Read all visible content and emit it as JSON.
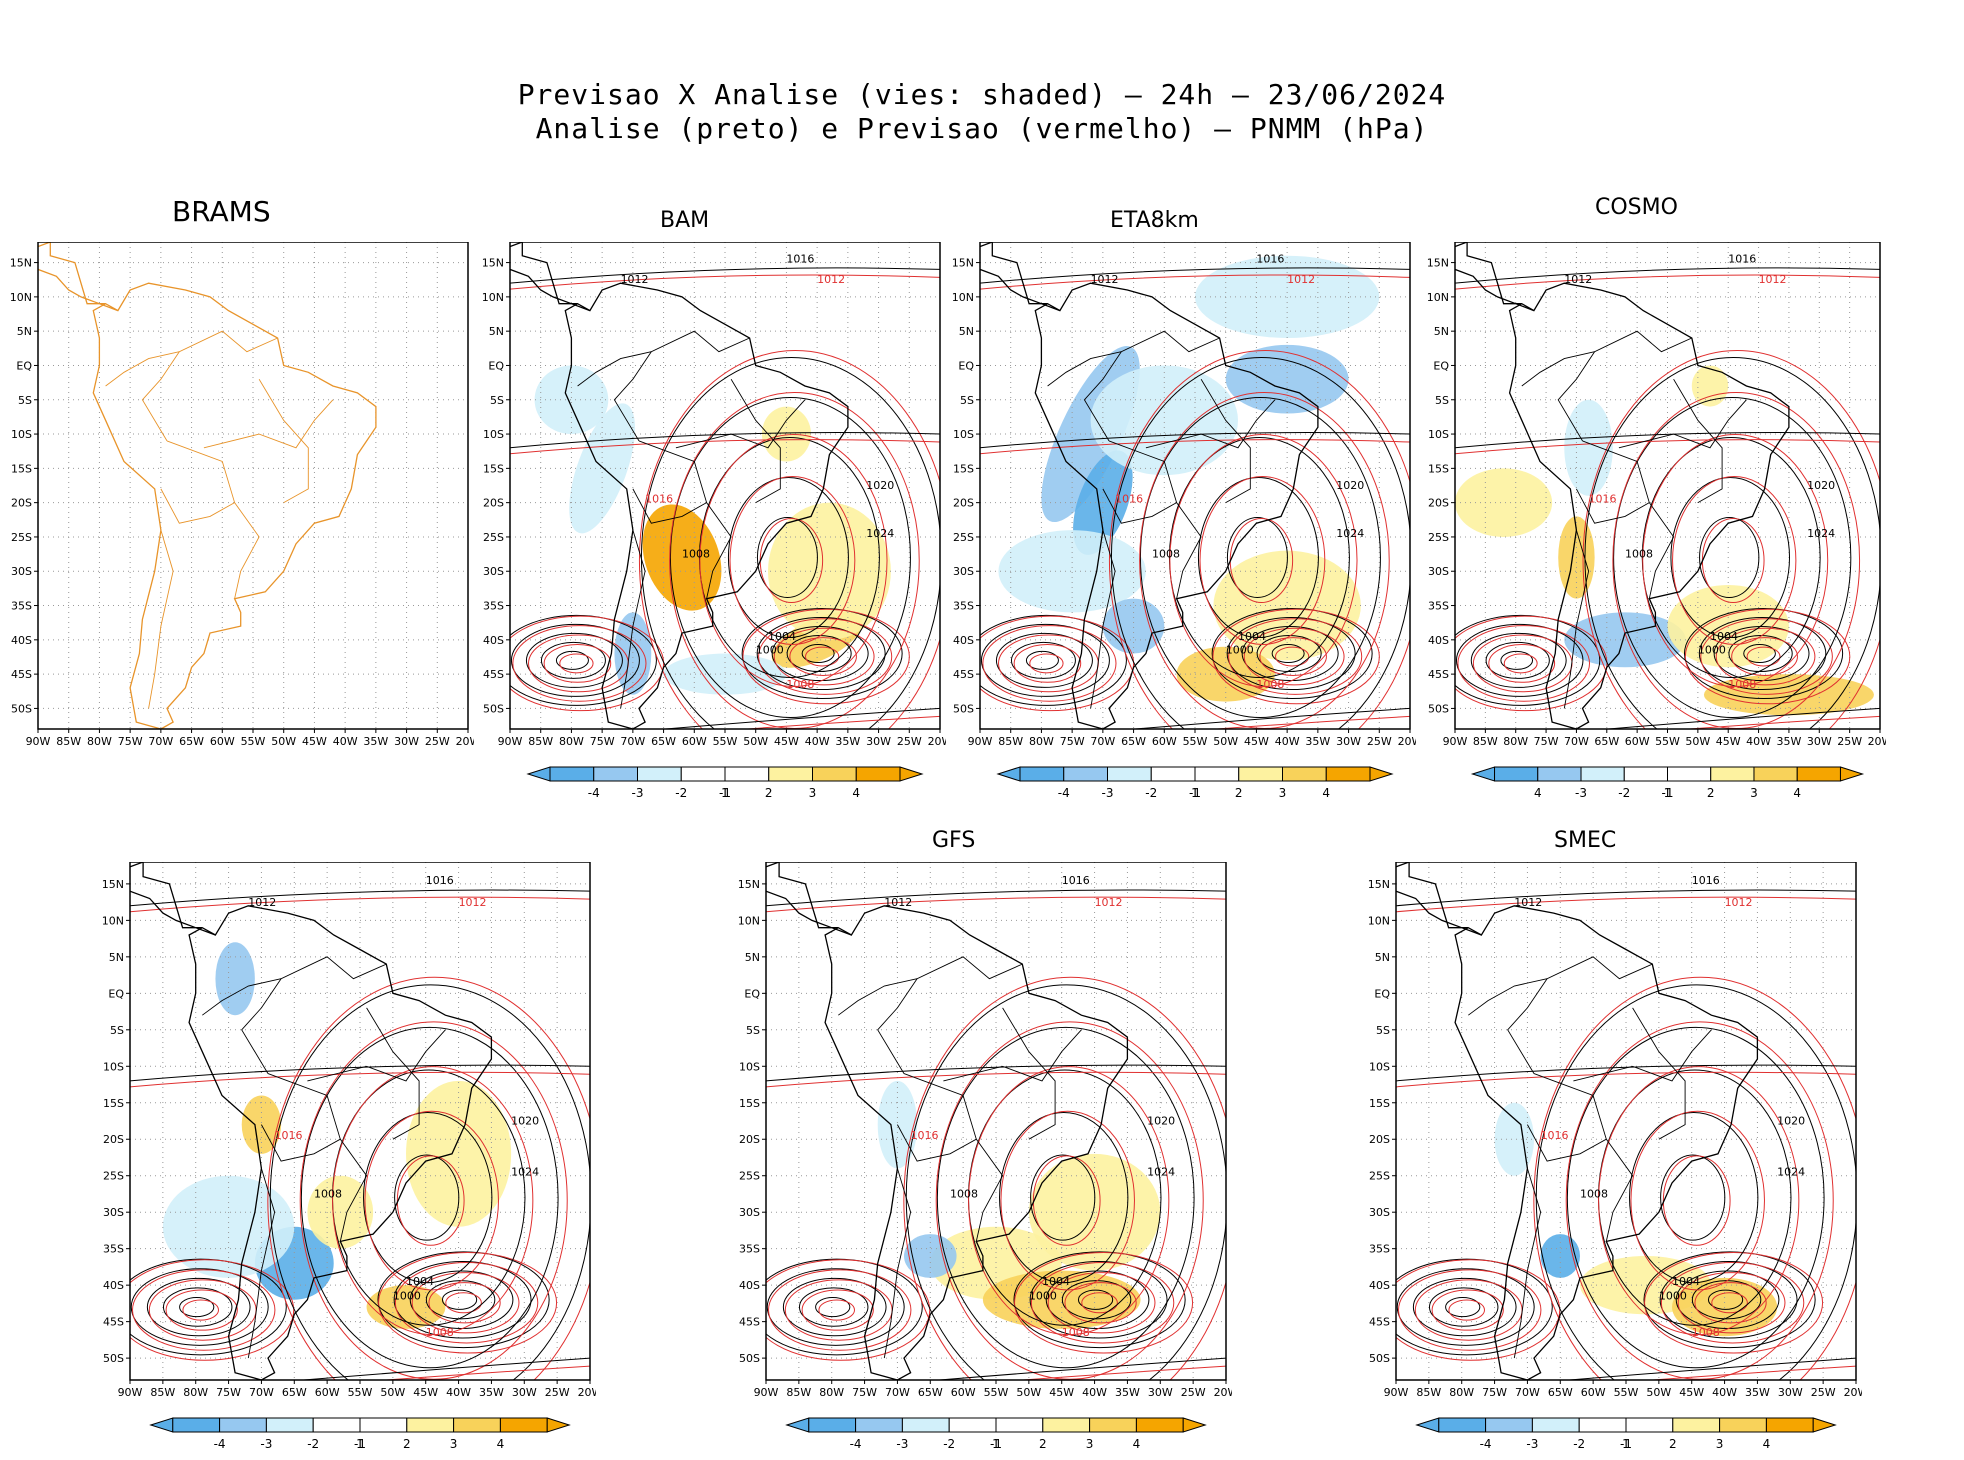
{
  "header": {
    "title_line1": "Previsao X Analise (vies: shaded) – 24h – 23/06/2024",
    "title_line2": "Analise (preto) e Previsao (vermelho) – PNMM (hPa)"
  },
  "colors": {
    "analysis_contour": "#000000",
    "forecast_contour": "#e03030",
    "coastline_brams": "#e8942a",
    "neg4": "#5aaee8",
    "neg3": "#96c8f0",
    "neg2": "#d2f0fa",
    "pos2": "#fdf2a0",
    "pos3": "#f8d25a",
    "pos4": "#f5a500"
  },
  "axes": {
    "lat_labels": [
      "15N",
      "10N",
      "5N",
      "EQ",
      "5S",
      "10S",
      "15S",
      "20S",
      "25S",
      "30S",
      "35S",
      "40S",
      "45S",
      "50S"
    ],
    "lon_labels": [
      "90W",
      "85W",
      "80W",
      "75W",
      "70W",
      "65W",
      "60W",
      "55W",
      "50W",
      "45W",
      "40W",
      "35W",
      "30W",
      "25W",
      "20W"
    ]
  },
  "colorbar_labels": [
    "-4",
    "-3",
    "-2",
    "-1",
    "1",
    "2",
    "3",
    "4"
  ],
  "colorbar_labels_cosmo": [
    "4",
    "-3",
    "-2",
    "-1",
    "1",
    "2",
    "3",
    "4"
  ],
  "panels": [
    {
      "id": "brams",
      "title": "BRAMS",
      "has_colorbar": false,
      "contour_labels": []
    },
    {
      "id": "bam",
      "title": "BAM",
      "has_colorbar": true,
      "contour_labels": [
        "1016",
        "1012",
        "1008",
        "1004",
        "1020",
        "1024",
        "1000",
        "1012",
        "1016",
        "1008"
      ]
    },
    {
      "id": "eta8km",
      "title": "ETA8km",
      "has_colorbar": true,
      "contour_labels": [
        "1016",
        "1012",
        "1008",
        "1004",
        "1020",
        "1024",
        "1000",
        "1012",
        "1016",
        "1008"
      ]
    },
    {
      "id": "cosmo",
      "title": "COSMO",
      "has_colorbar": true,
      "contour_labels": [
        "1016",
        "1012",
        "1008",
        "1004",
        "1020",
        "1024",
        "1000",
        "1012",
        "1016",
        "1008"
      ]
    },
    {
      "id": "unnamed",
      "title": "",
      "has_colorbar": true,
      "contour_labels": [
        "1016",
        "1012",
        "1008",
        "1004",
        "1020",
        "1024",
        "1000",
        "1012",
        "1016",
        "1008"
      ]
    },
    {
      "id": "gfs",
      "title": "GFS",
      "has_colorbar": true,
      "contour_labels": [
        "1016",
        "1012",
        "1008",
        "1004",
        "1020",
        "1024",
        "1000",
        "1012",
        "1016",
        "1008"
      ]
    },
    {
      "id": "smec",
      "title": "SMEC",
      "has_colorbar": true,
      "contour_labels": [
        "1016",
        "1012",
        "1008",
        "1004",
        "1020",
        "1024",
        "1000",
        "1012",
        "1016",
        "1008"
      ]
    }
  ]
}
